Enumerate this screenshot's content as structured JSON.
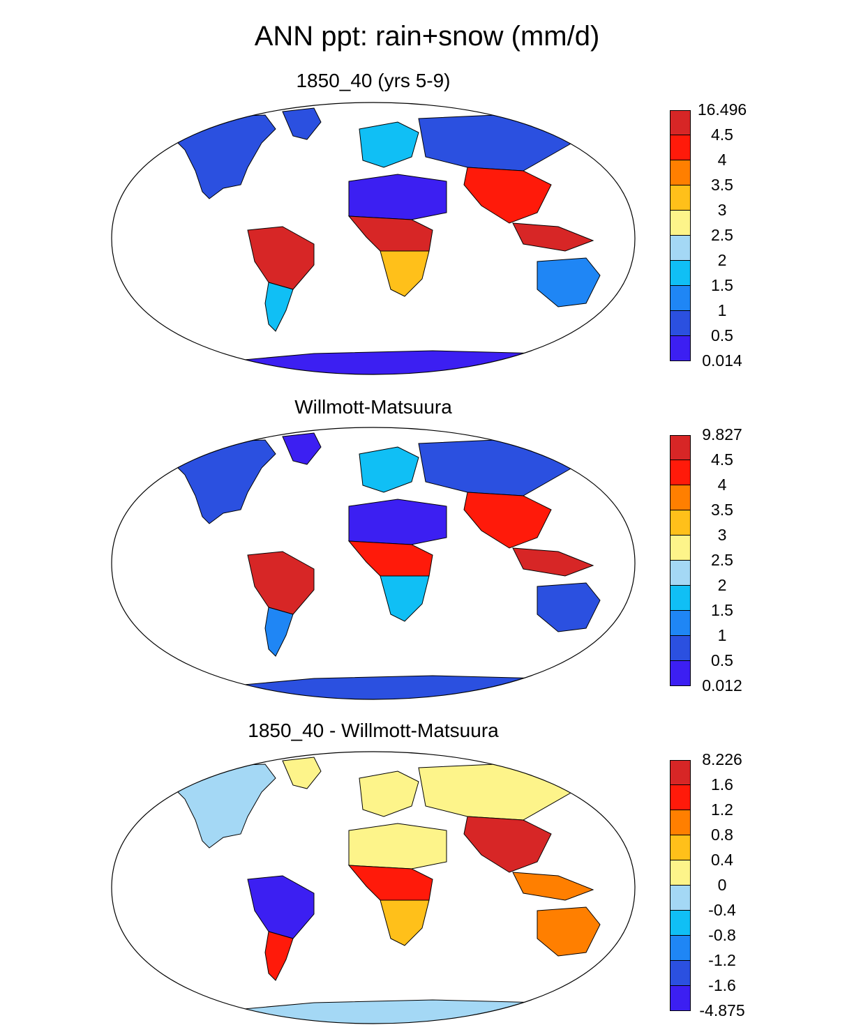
{
  "title": "ANN ppt: rain+snow (mm/d)",
  "colors": {
    "precip_scale": [
      "#3c1ff2",
      "#2b50e0",
      "#1f86f5",
      "#10bff5",
      "#a4d8f5",
      "#fdf48a",
      "#ffc01a",
      "#ff7f00",
      "#ff1a0a",
      "#d72626"
    ],
    "diff_scale": [
      "#3c1ff2",
      "#2b50e0",
      "#1f86f5",
      "#10bff5",
      "#a4d8f5",
      "#fdf48a",
      "#ffc01a",
      "#ff7f00",
      "#ff1a0a",
      "#d72626"
    ]
  },
  "panels": [
    {
      "title": "1850_40 (yrs 5-9)",
      "colorbar_labels": [
        "16.496",
        "4.5",
        "4",
        "3.5",
        "3",
        "2.5",
        "2",
        "1.5",
        "1",
        "0.5",
        "0.014"
      ],
      "scale": "precip_scale",
      "regions": {
        "north_america": 1,
        "greenland": 1,
        "amazon": 9,
        "south_america_south": 3,
        "sahara": 0,
        "central_africa": 9,
        "southern_africa": 6,
        "europe": 3,
        "siberia": 1,
        "south_asia": 8,
        "maritime": 9,
        "australia": 2,
        "antarctica": 0
      }
    },
    {
      "title": "Willmott-Matsuura",
      "colorbar_labels": [
        "9.827",
        "4.5",
        "4",
        "3.5",
        "3",
        "2.5",
        "2",
        "1.5",
        "1",
        "0.5",
        "0.012"
      ],
      "scale": "precip_scale",
      "regions": {
        "north_america": 1,
        "greenland": 0,
        "amazon": 9,
        "south_america_south": 2,
        "sahara": 0,
        "central_africa": 8,
        "southern_africa": 3,
        "europe": 3,
        "siberia": 1,
        "south_asia": 8,
        "maritime": 9,
        "australia": 1,
        "antarctica": 1
      }
    },
    {
      "title": "1850_40 - Willmott-Matsuura",
      "colorbar_labels": [
        "8.226",
        "1.6",
        "1.2",
        "0.8",
        "0.4",
        "0",
        "-0.4",
        "-0.8",
        "-1.2",
        "-1.6",
        "-4.875"
      ],
      "scale": "diff_scale",
      "regions": {
        "north_america": 4,
        "greenland": 5,
        "amazon": 0,
        "south_america_south": 8,
        "sahara": 5,
        "central_africa": 8,
        "southern_africa": 6,
        "europe": 5,
        "siberia": 5,
        "south_asia": 9,
        "maritime": 7,
        "australia": 7,
        "antarctica": 4
      }
    }
  ]
}
